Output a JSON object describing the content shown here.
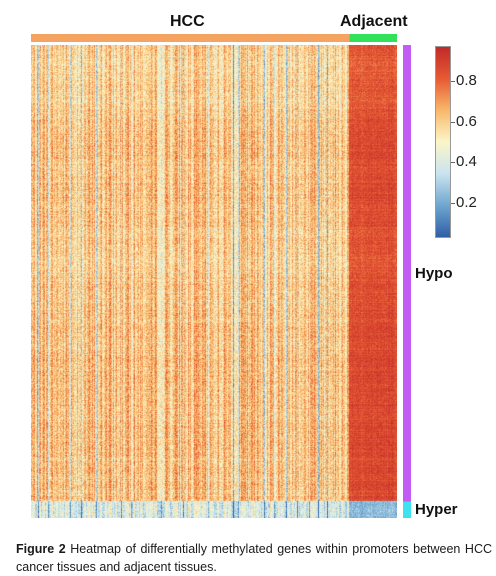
{
  "chart_data": {
    "type": "heatmap",
    "column_groups": [
      {
        "name": "HCC",
        "color": "#f4a460",
        "fraction": 0.87
      },
      {
        "name": "Adjacent",
        "color": "#33e05a",
        "fraction": 0.13
      }
    ],
    "row_groups": [
      {
        "name": "Hypo",
        "color": "#c15cf5",
        "fraction": 0.965
      },
      {
        "name": "Hyper",
        "color": "#3fe3f0",
        "fraction": 0.035
      }
    ],
    "group_means": {
      "HCC_Hypo": 0.58,
      "Adjacent_Hypo": 0.82,
      "HCC_Hyper": 0.38,
      "Adjacent_Hyper": 0.22
    },
    "colorscale": [
      "#2f5fa6",
      "#6fa6cf",
      "#c9e4ef",
      "#fbf6c8",
      "#f8b86a",
      "#e65a34",
      "#c22a28"
    ],
    "colorbar": {
      "range": [
        0.03,
        0.97
      ],
      "ticks": [
        0.2,
        0.4,
        0.6,
        0.8
      ],
      "tick_labels": [
        "0.2",
        "0.4",
        "0.6",
        "0.8"
      ]
    }
  },
  "caption": {
    "figure_label": "Figure 2",
    "text": "Heatmap of differentially methylated genes within promoters between HCC cancer tissues and adjacent tissues."
  }
}
